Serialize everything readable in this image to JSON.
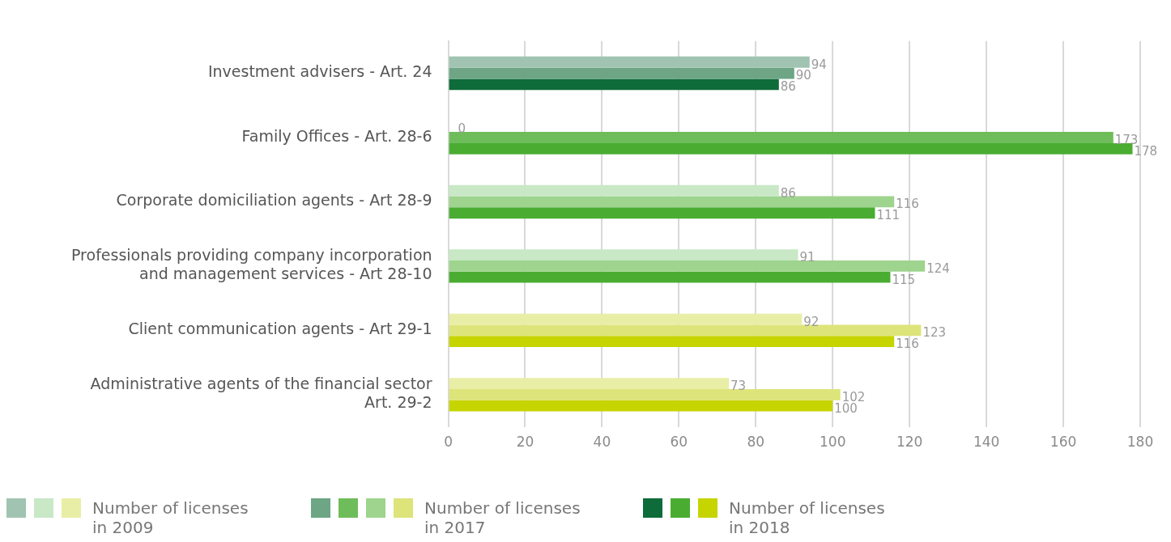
{
  "chart_data": {
    "type": "bar",
    "orientation": "horizontal",
    "categories": [
      "Investment advisers - Art. 24",
      "Family Offices - Art. 28-6",
      "Corporate domiciliation agents - Art 28-9",
      "Professionals providing company incorporation\nand management services - Art 28-10",
      "Client communication agents - Art 29-1",
      "Administrative agents of the financial sector\nArt. 29-2"
    ],
    "series": [
      {
        "name": "Number of licenses in 2009",
        "colors": [
          "#a0c4b1",
          "#c8e8c6",
          "#c8e8c6",
          "#c8e8c6",
          "#e8eea6",
          "#e8eea6"
        ],
        "values": [
          94,
          0,
          86,
          91,
          92,
          73
        ]
      },
      {
        "name": "Number of licenses in 2017",
        "colors": [
          "#6da585",
          "#6fbd5a",
          "#9ed48e",
          "#9ed48e",
          "#dde47a",
          "#dde47a"
        ],
        "values": [
          90,
          173,
          116,
          124,
          123,
          102
        ]
      },
      {
        "name": "Number of licenses in 2018",
        "colors": [
          "#0e6b3a",
          "#4aad32",
          "#4aad32",
          "#4aad32",
          "#c6d400",
          "#c6d400"
        ],
        "values": [
          86,
          178,
          111,
          115,
          116,
          100
        ]
      }
    ],
    "xlim": [
      0,
      180
    ],
    "xticks": [
      0,
      20,
      40,
      60,
      80,
      100,
      120,
      140,
      160,
      180
    ],
    "grid": "x",
    "legend": "bottom",
    "data_labels": true
  }
}
